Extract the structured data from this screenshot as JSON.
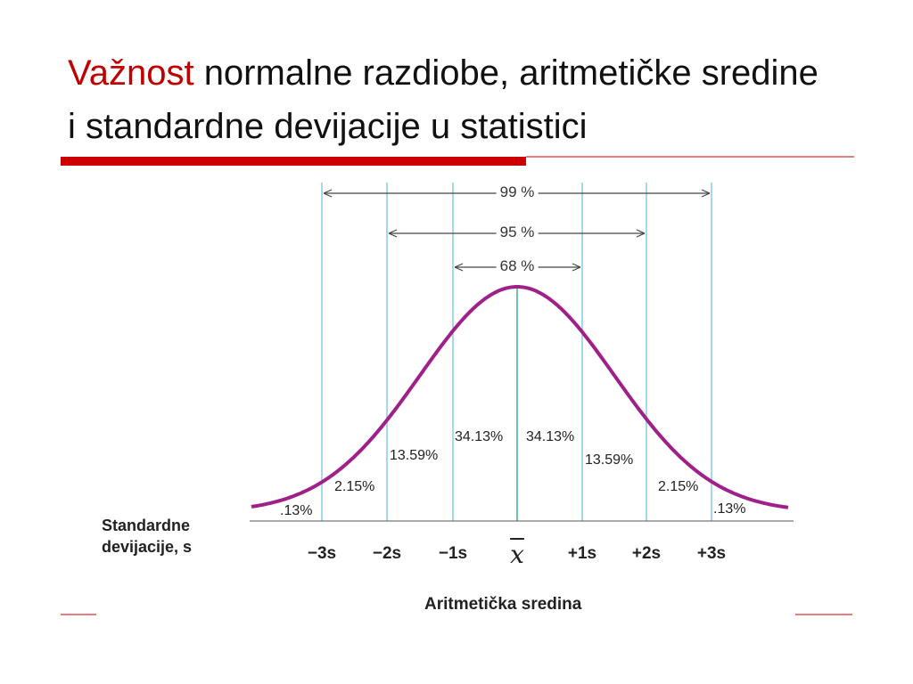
{
  "title": {
    "highlight": "Važnost",
    "rest": "normalne razdiobe, aritmetičke sredine i standardne devijacije u statistici"
  },
  "figure": {
    "ranges": [
      "99 %",
      "95 %",
      "68 %"
    ],
    "areas": [
      ".13%",
      "2.15%",
      "13.59%",
      "34.13%",
      "34.13%",
      "13.59%",
      "2.15%",
      ".13%"
    ],
    "axis_label": "Standardne devijacije, s",
    "ticks": [
      "−3s",
      "−2s",
      "−1s",
      "x",
      "+1s",
      "+2s",
      "+3s"
    ],
    "mean_label": "Aritmetička sredina"
  }
}
